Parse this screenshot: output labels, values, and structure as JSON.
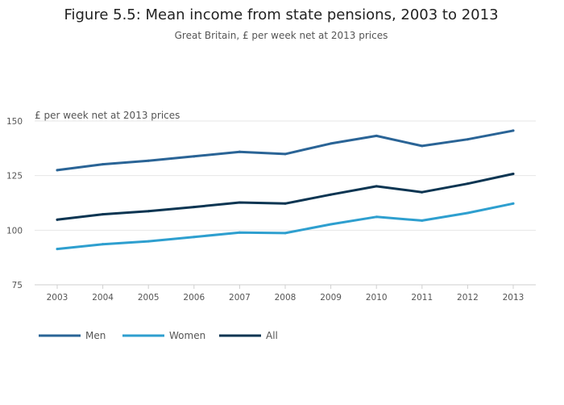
{
  "chart_data": {
    "type": "line",
    "title": "Figure 5.5: Mean income from state pensions, 2003 to 2013",
    "subtitle": "Great Britain, £ per week net at 2013 prices",
    "ylabel": "£ per week net at 2013 prices",
    "xlabel": "",
    "x": [
      "2003",
      "2004",
      "2005",
      "2006",
      "2007",
      "2008",
      "2009",
      "2010",
      "2011",
      "2012",
      "2013"
    ],
    "yticks": [
      75,
      100,
      125,
      150
    ],
    "ylim": [
      75,
      150
    ],
    "grid": true,
    "legend_position": "bottom-left",
    "series": [
      {
        "name": "Men",
        "color": "#2a6496",
        "values": [
          127.5,
          130.2,
          131.8,
          133.8,
          135.9,
          134.9,
          139.7,
          143.2,
          138.6,
          141.6,
          145.6
        ]
      },
      {
        "name": "Women",
        "color": "#2e9fcf",
        "values": [
          91.4,
          93.6,
          94.9,
          96.9,
          98.9,
          98.7,
          102.7,
          106.1,
          104.4,
          107.9,
          112.2
        ]
      },
      {
        "name": "All",
        "color": "#0b3552",
        "values": [
          104.8,
          107.3,
          108.7,
          110.6,
          112.7,
          112.2,
          116.3,
          120.1,
          117.4,
          121.3,
          125.8
        ]
      }
    ]
  }
}
